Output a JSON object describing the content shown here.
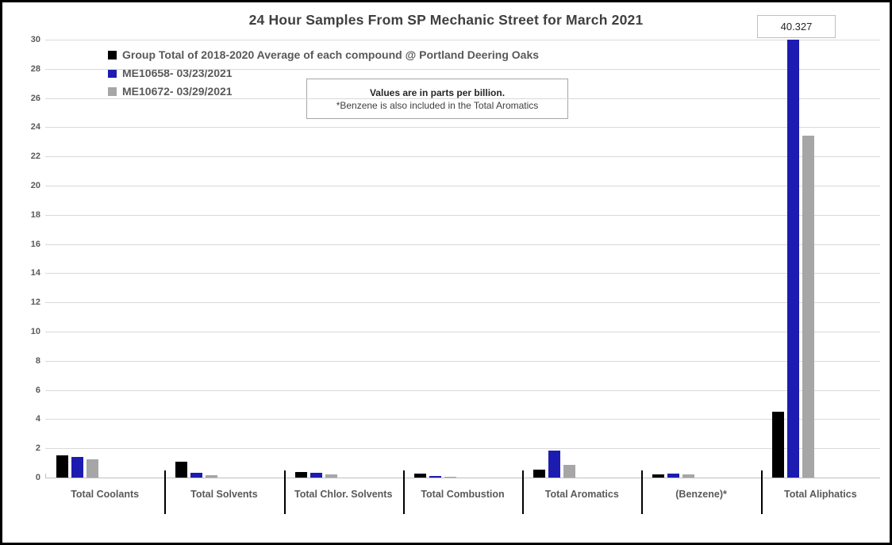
{
  "window": {
    "title": "24 Hour Samples From SP Mechanic Street for March 2021"
  },
  "chart_data": {
    "type": "bar",
    "title": "24 Hour Samples From SP Mechanic Street for March 2021",
    "categories": [
      "Total Coolants",
      "Total Solvents",
      "Total Chlor. Solvents",
      "Total Combustion",
      "Total Aromatics",
      "(Benzene)*",
      "Total Aliphatics"
    ],
    "series": [
      {
        "name": "Group Total of 2018-2020 Average of each compound @ Portland Deering Oaks",
        "color": "#000000",
        "values": [
          1.5,
          1.1,
          0.4,
          0.25,
          0.55,
          0.2,
          4.5
        ]
      },
      {
        "name": "ME10658- 03/23/2021",
        "color": "#1c1cb0",
        "values": [
          1.4,
          0.35,
          0.3,
          0.12,
          1.85,
          0.25,
          40.327
        ]
      },
      {
        "name": "ME10672- 03/29/2021",
        "color": "#a6a6a6",
        "values": [
          1.25,
          0.15,
          0.2,
          0.05,
          0.85,
          0.2,
          23.4
        ]
      }
    ],
    "ylabel": "",
    "xlabel": "",
    "ylim": [
      0,
      30
    ],
    "ytick_step": 2,
    "grid": true,
    "legend_position": "top-left",
    "annotation": {
      "line1": "Values are in parts per billion.",
      "line2": "*Benzene is also included in the Total Aromatics"
    },
    "data_label": {
      "text": "40.327",
      "series": "ME10658- 03/23/2021",
      "category": "Total Aliphatics",
      "note": "bar exceeds axis maximum and is clipped at 30"
    },
    "colors": {
      "gridline": "#d9d9d9",
      "axis_line": "#bfbfbf",
      "tick_text": "#595959",
      "category_text": "#595959",
      "title_text": "#3f3f3f",
      "separator": "#000000"
    }
  }
}
